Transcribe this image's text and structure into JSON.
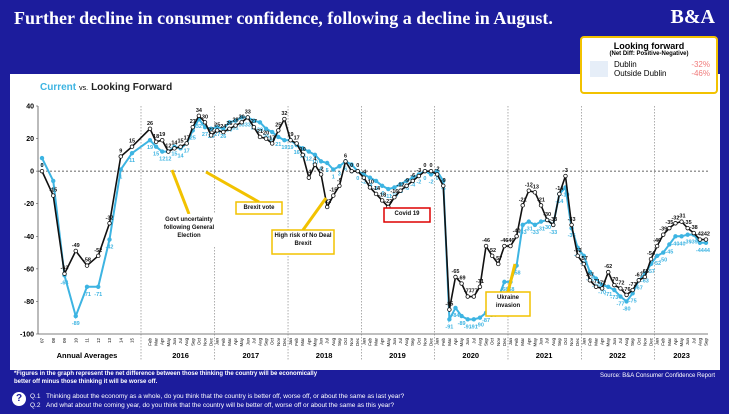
{
  "header": {
    "title": "Further decline in consumer confidence, following a decline in August.",
    "logo": "B&A"
  },
  "chart_data": {
    "type": "line",
    "title": "Current",
    "title_joiner": "vs.",
    "title_end": "Looking Forward",
    "categories": [
      "07",
      "08",
      "09",
      "10",
      "11",
      "12",
      "13",
      "14",
      "15",
      "Feb",
      "Mar",
      "Apr",
      "May",
      "Jun",
      "Jul",
      "Aug",
      "Sep",
      "Oct",
      "Nov",
      "Dec",
      "Jan",
      "Feb",
      "Mar",
      "Apr",
      "May",
      "Jun",
      "Jul",
      "Aug",
      "Sep",
      "Oct",
      "Nov",
      "Dec",
      "Jan",
      "Feb",
      "Mar",
      "Apr",
      "May",
      "Jun",
      "Jul",
      "Aug",
      "Sep",
      "Oct",
      "Nov",
      "Dec",
      "Jan",
      "Feb",
      "Mar",
      "Apr",
      "May",
      "Jun",
      "Jul",
      "Aug",
      "Sep",
      "Oct",
      "Nov",
      "Dec",
      "Jan",
      "Feb",
      "Mar",
      "Apr",
      "May",
      "Jun",
      "Jul",
      "Aug",
      "Sep",
      "Oct",
      "Nov",
      "Dec",
      "Jan",
      "Feb",
      "Mar",
      "Apr",
      "May",
      "Jun",
      "Jul",
      "Aug",
      "Sep",
      "Oct",
      "Nov",
      "Dec",
      "Jan",
      "Feb",
      "Mar",
      "Apr",
      "May",
      "Jun",
      "Jul",
      "Aug",
      "Sep",
      "Oct",
      "Nov",
      "Dec",
      "Jan",
      "Feb",
      "Mar",
      "Apr",
      "May",
      "Jun",
      "Jul",
      "Aug",
      "Sep"
    ],
    "annual_label": "Annual Averages",
    "years": [
      "2016",
      "2017",
      "2018",
      "2019",
      "2020",
      "2021",
      "2022",
      "2023"
    ],
    "series": [
      {
        "name": "Current",
        "color": "#3db4e2",
        "values": [
          8,
          -6,
          -64,
          -89,
          -71,
          -71,
          -42,
          1,
          11,
          19,
          15,
          12,
          12,
          15,
          14,
          17,
          25,
          32,
          27,
          26,
          27,
          26,
          30,
          31,
          33,
          33,
          31,
          30,
          26,
          24,
          21,
          19,
          19,
          16,
          14,
          12,
          10,
          6,
          5,
          1,
          3,
          6,
          4,
          0,
          -2,
          -4,
          -6,
          -9,
          -11,
          -10,
          -8,
          -6,
          -4,
          -2,
          0,
          -2,
          0,
          -6,
          -91,
          -84,
          -89,
          -91,
          -91,
          -90,
          -87,
          -84,
          -78,
          -68,
          -68,
          -58,
          -33,
          -31,
          -33,
          -31,
          -30,
          -33,
          -14,
          -10,
          -35,
          -47,
          -52,
          -62,
          -66,
          -70,
          -71,
          -73,
          -77,
          -80,
          -75,
          -67,
          -63,
          -57,
          -52,
          -50,
          -45,
          -40,
          -40,
          -39,
          -39,
          -44,
          -44
        ]
      },
      {
        "name": "Looking Forward",
        "color": "#111111",
        "values": [
          0,
          -15,
          -63,
          -49,
          -58,
          -52,
          -32,
          9,
          15,
          26,
          18,
          19,
          12,
          14,
          15,
          17,
          27,
          34,
          30,
          22,
          25,
          24,
          26,
          28,
          30,
          33,
          27,
          21,
          20,
          17,
          25,
          32,
          19,
          17,
          10,
          -4,
          4,
          -2,
          -22,
          -15,
          -9,
          6,
          0,
          0,
          -4,
          -10,
          -14,
          -18,
          -22,
          -16,
          -12,
          -9,
          -6,
          -3,
          0,
          0,
          -2,
          -9,
          -85,
          -65,
          -69,
          -77,
          -77,
          -71,
          -46,
          -52,
          -57,
          -46,
          -46,
          -40,
          -21,
          -12,
          -13,
          -21,
          -30,
          -33,
          -14,
          -3,
          -33,
          -52,
          -57,
          -67,
          -71,
          -72,
          -62,
          -70,
          -72,
          -76,
          -73,
          -67,
          -65,
          -54,
          -46,
          -39,
          -35,
          -32,
          -31,
          -35,
          -38,
          -42,
          -42
        ]
      }
    ],
    "ylim": [
      -100,
      40
    ],
    "yticks": [
      -100,
      -80,
      -60,
      -40,
      -20,
      0,
      20,
      40
    ],
    "grid": false,
    "annotations": [
      "Govt uncertainty following General Election",
      "Brexit vote",
      "High risk of No Deal Brexit",
      "Covid 19",
      "Ukraine invasion"
    ]
  },
  "legend_box": {
    "title": "Looking forward",
    "subtitle": "(Net Diff: Positive-Negative)",
    "rows": [
      {
        "label": "Dublin",
        "value": "-32%"
      },
      {
        "label": "Outside Dublin",
        "value": "-46%"
      }
    ]
  },
  "footnote": "*Figures in the graph represent the net difference between those thinking the country will be economically better off minus those thinking it will be worse off.",
  "source": "Source: B&A Consumer Confidence Report",
  "questions": [
    {
      "number": "Q.1",
      "text": "Thinking about the economy as a whole, do you think that the country is better off, worse off, or about the same as last year?"
    },
    {
      "number": "Q.2",
      "text": "And what about the coming year, do you think that the country will be better off, worse off or about the same as this year?"
    }
  ]
}
